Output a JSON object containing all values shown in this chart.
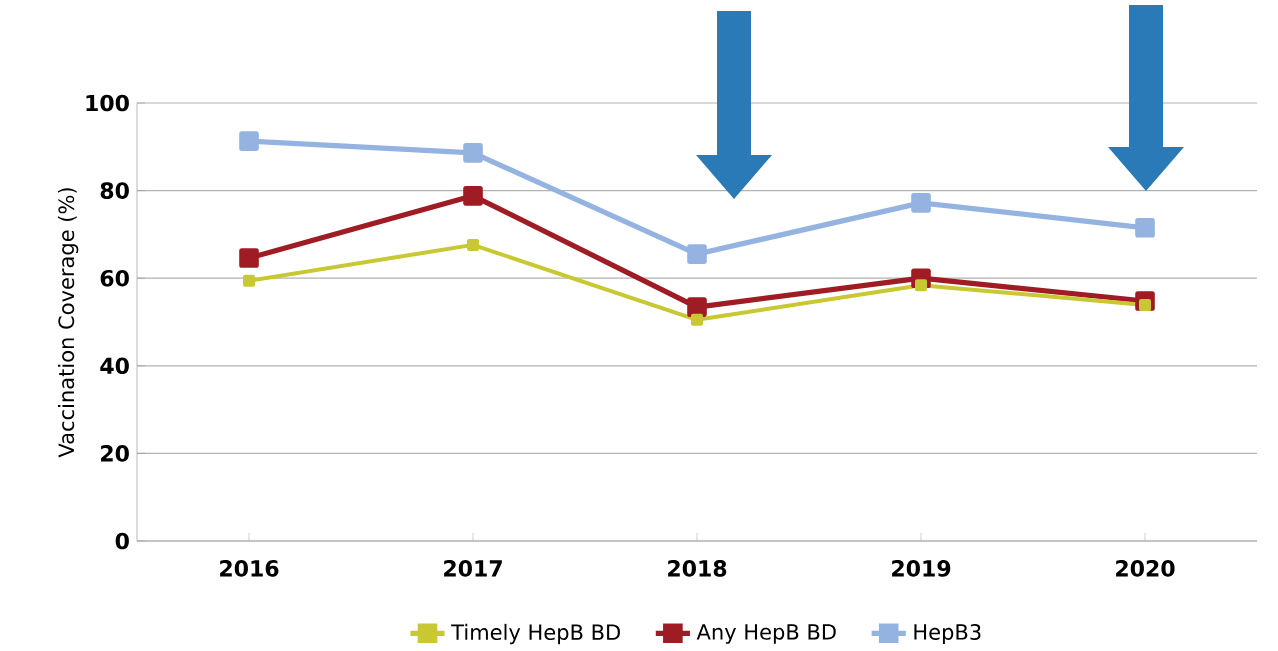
{
  "chart_data": {
    "type": "line",
    "ylabel": "Vaccination  Coverage (%)",
    "categories": [
      "2016",
      "2017",
      "2018",
      "2019",
      "2020"
    ],
    "series": [
      {
        "name": "Timely HepB BD",
        "color": "#c8c832",
        "values": [
          59.4,
          67.6,
          50.5,
          58.4,
          53.9
        ]
      },
      {
        "name": "Any HepB BD",
        "color": "#a01c24",
        "values": [
          64.6,
          78.8,
          53.4,
          60.0,
          54.8
        ]
      },
      {
        "name": "HepB3",
        "color": "#95b3e0",
        "values": [
          91.3,
          88.6,
          65.5,
          77.2,
          71.5
        ]
      }
    ],
    "ylim": [
      0,
      100
    ],
    "yticks": [
      0,
      20,
      40,
      60,
      80,
      100
    ],
    "grid": "y",
    "legend": "bottom",
    "marker": "square",
    "line_style": "solid"
  }
}
